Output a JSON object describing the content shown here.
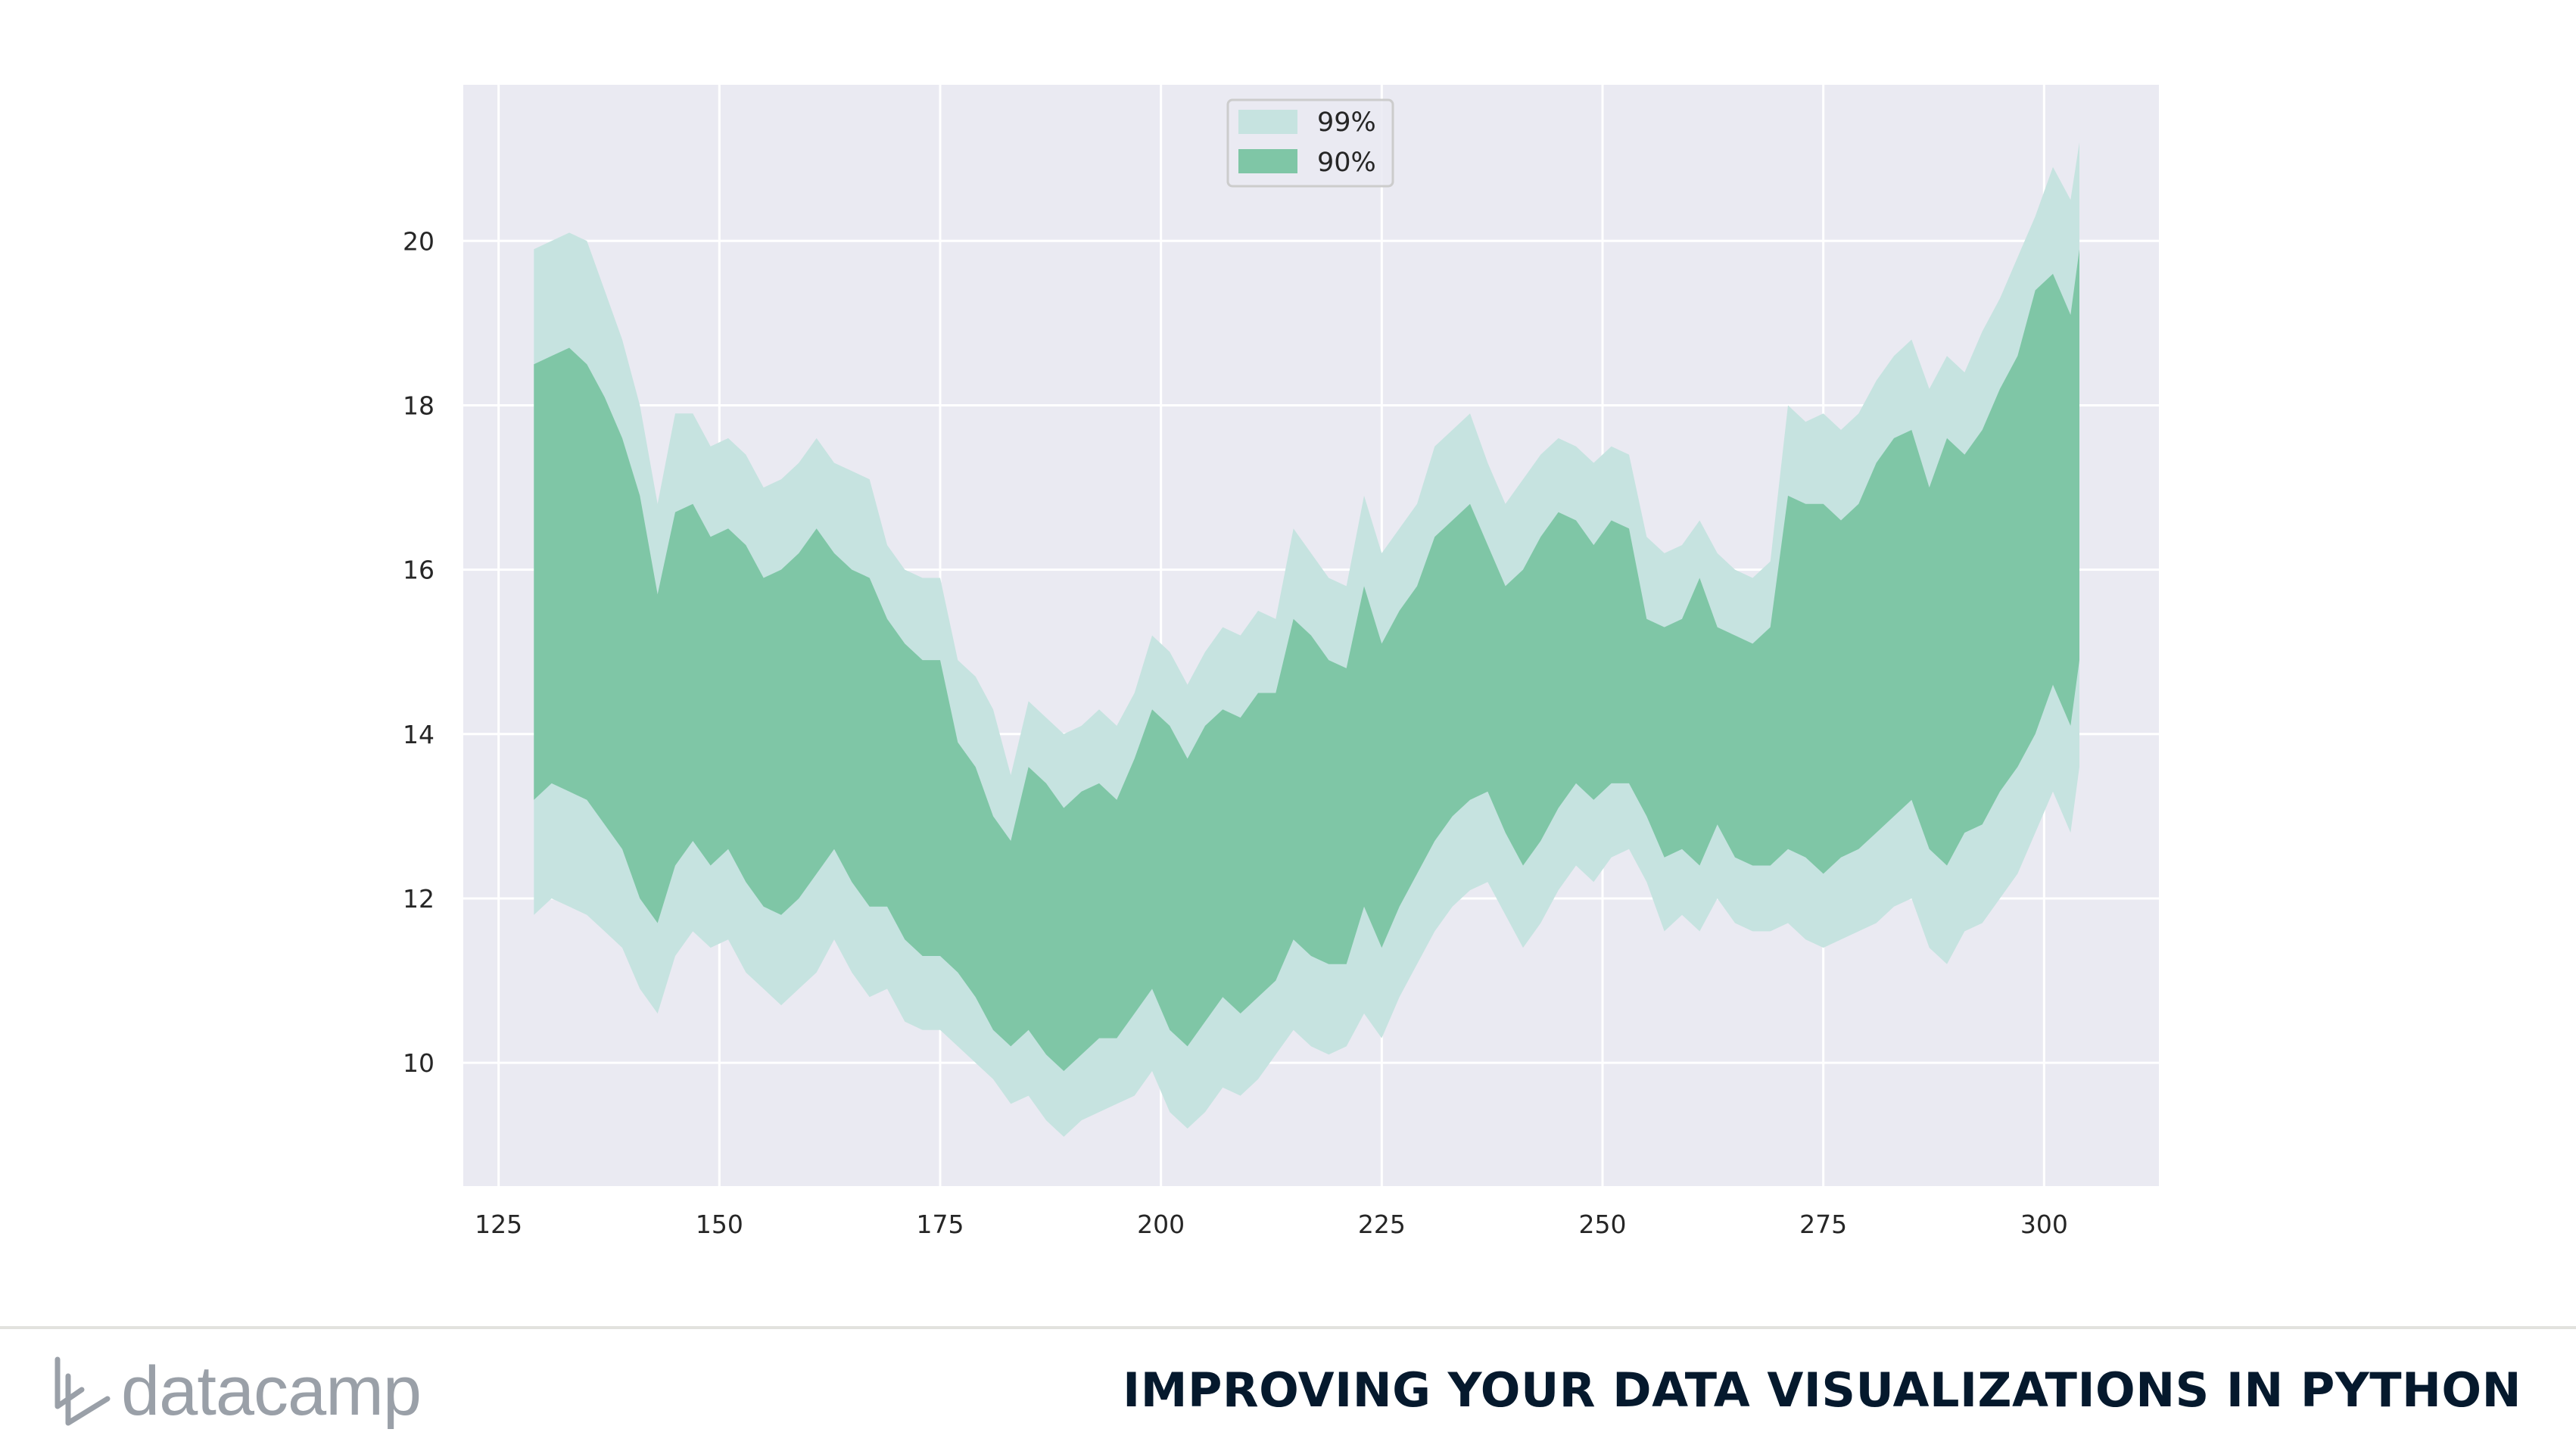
{
  "footer": {
    "brand": "datacamp",
    "course_title": "IMPROVING YOUR DATA VISUALIZATIONS IN PYTHON"
  },
  "colors": {
    "plot_background": "#eaeaf2",
    "grid": "#ffffff",
    "band_99": "#c6e3e0",
    "band_90": "#7fc6a6",
    "brand_gray": "#9aa0a8",
    "title_navy": "#05192d"
  },
  "chart_data": {
    "type": "area",
    "title": "",
    "xlabel": "",
    "ylabel": "",
    "xlim": [
      121,
      313
    ],
    "ylim": [
      8.5,
      21.9
    ],
    "x_ticks": [
      125,
      150,
      175,
      200,
      225,
      250,
      275,
      300
    ],
    "y_ticks": [
      10,
      12,
      14,
      16,
      18,
      20
    ],
    "grid": true,
    "legend_position": "top-center",
    "x": [
      129,
      131,
      133,
      135,
      137,
      139,
      141,
      143,
      145,
      147,
      149,
      151,
      153,
      155,
      157,
      159,
      161,
      163,
      165,
      167,
      169,
      171,
      173,
      175,
      177,
      179,
      181,
      183,
      185,
      187,
      189,
      191,
      193,
      195,
      197,
      199,
      201,
      203,
      205,
      207,
      209,
      211,
      213,
      215,
      217,
      219,
      221,
      223,
      225,
      227,
      229,
      231,
      233,
      235,
      237,
      239,
      241,
      243,
      245,
      247,
      249,
      251,
      253,
      255,
      257,
      259,
      261,
      263,
      265,
      267,
      269,
      271,
      273,
      275,
      277,
      279,
      281,
      283,
      285,
      287,
      289,
      291,
      293,
      295,
      297,
      299,
      301,
      303,
      304
    ],
    "series": [
      {
        "name": "99%",
        "color": "#c6e3e0",
        "upper": [
          19.9,
          20.0,
          20.1,
          20.0,
          19.4,
          18.8,
          18.0,
          16.8,
          17.9,
          17.9,
          17.5,
          17.6,
          17.4,
          17.0,
          17.1,
          17.3,
          17.6,
          17.3,
          17.2,
          17.1,
          16.3,
          16.0,
          15.9,
          15.9,
          14.9,
          14.7,
          14.3,
          13.5,
          14.4,
          14.2,
          14.0,
          14.1,
          14.3,
          14.1,
          14.5,
          15.2,
          15.0,
          14.6,
          15.0,
          15.3,
          15.2,
          15.5,
          15.4,
          16.5,
          16.2,
          15.9,
          15.8,
          16.9,
          16.2,
          16.5,
          16.8,
          17.5,
          17.7,
          17.9,
          17.3,
          16.8,
          17.1,
          17.4,
          17.6,
          17.5,
          17.3,
          17.5,
          17.4,
          16.4,
          16.2,
          16.3,
          16.6,
          16.2,
          16.0,
          15.9,
          16.1,
          18.0,
          17.8,
          17.9,
          17.7,
          17.9,
          18.3,
          18.6,
          18.8,
          18.2,
          18.6,
          18.4,
          18.9,
          19.3,
          19.8,
          20.3,
          20.9,
          20.5,
          21.2
        ],
        "lower": [
          11.8,
          12.0,
          11.9,
          11.8,
          11.6,
          11.4,
          10.9,
          10.6,
          11.3,
          11.6,
          11.4,
          11.5,
          11.1,
          10.9,
          10.7,
          10.9,
          11.1,
          11.5,
          11.1,
          10.8,
          10.9,
          10.5,
          10.4,
          10.4,
          10.2,
          10.0,
          9.8,
          9.5,
          9.6,
          9.3,
          9.1,
          9.3,
          9.4,
          9.5,
          9.6,
          9.9,
          9.4,
          9.2,
          9.4,
          9.7,
          9.6,
          9.8,
          10.1,
          10.4,
          10.2,
          10.1,
          10.2,
          10.6,
          10.3,
          10.8,
          11.2,
          11.6,
          11.9,
          12.1,
          12.2,
          11.8,
          11.4,
          11.7,
          12.1,
          12.4,
          12.2,
          12.5,
          12.6,
          12.2,
          11.6,
          11.8,
          11.6,
          12.0,
          11.7,
          11.6,
          11.6,
          11.7,
          11.5,
          11.4,
          11.5,
          11.6,
          11.7,
          11.9,
          12.0,
          11.4,
          11.2,
          11.6,
          11.7,
          12.0,
          12.3,
          12.8,
          13.3,
          12.8,
          13.6
        ]
      },
      {
        "name": "90%",
        "color": "#7fc6a6",
        "upper": [
          18.5,
          18.6,
          18.7,
          18.5,
          18.1,
          17.6,
          16.9,
          15.7,
          16.7,
          16.8,
          16.4,
          16.5,
          16.3,
          15.9,
          16.0,
          16.2,
          16.5,
          16.2,
          16.0,
          15.9,
          15.4,
          15.1,
          14.9,
          14.9,
          13.9,
          13.6,
          13.0,
          12.7,
          13.6,
          13.4,
          13.1,
          13.3,
          13.4,
          13.2,
          13.7,
          14.3,
          14.1,
          13.7,
          14.1,
          14.3,
          14.2,
          14.5,
          14.5,
          15.4,
          15.2,
          14.9,
          14.8,
          15.8,
          15.1,
          15.5,
          15.8,
          16.4,
          16.6,
          16.8,
          16.3,
          15.8,
          16.0,
          16.4,
          16.7,
          16.6,
          16.3,
          16.6,
          16.5,
          15.4,
          15.3,
          15.4,
          15.9,
          15.3,
          15.2,
          15.1,
          15.3,
          16.9,
          16.8,
          16.8,
          16.6,
          16.8,
          17.3,
          17.6,
          17.7,
          17.0,
          17.6,
          17.4,
          17.7,
          18.2,
          18.6,
          19.4,
          19.6,
          19.1,
          19.9
        ],
        "lower": [
          13.2,
          13.4,
          13.3,
          13.2,
          12.9,
          12.6,
          12.0,
          11.7,
          12.4,
          12.7,
          12.4,
          12.6,
          12.2,
          11.9,
          11.8,
          12.0,
          12.3,
          12.6,
          12.2,
          11.9,
          11.9,
          11.5,
          11.3,
          11.3,
          11.1,
          10.8,
          10.4,
          10.2,
          10.4,
          10.1,
          9.9,
          10.1,
          10.3,
          10.3,
          10.6,
          10.9,
          10.4,
          10.2,
          10.5,
          10.8,
          10.6,
          10.8,
          11.0,
          11.5,
          11.3,
          11.2,
          11.2,
          11.9,
          11.4,
          11.9,
          12.3,
          12.7,
          13.0,
          13.2,
          13.3,
          12.8,
          12.4,
          12.7,
          13.1,
          13.4,
          13.2,
          13.4,
          13.4,
          13.0,
          12.5,
          12.6,
          12.4,
          12.9,
          12.5,
          12.4,
          12.4,
          12.6,
          12.5,
          12.3,
          12.5,
          12.6,
          12.8,
          13.0,
          13.2,
          12.6,
          12.4,
          12.8,
          12.9,
          13.3,
          13.6,
          14.0,
          14.6,
          14.1,
          14.9
        ]
      }
    ]
  }
}
